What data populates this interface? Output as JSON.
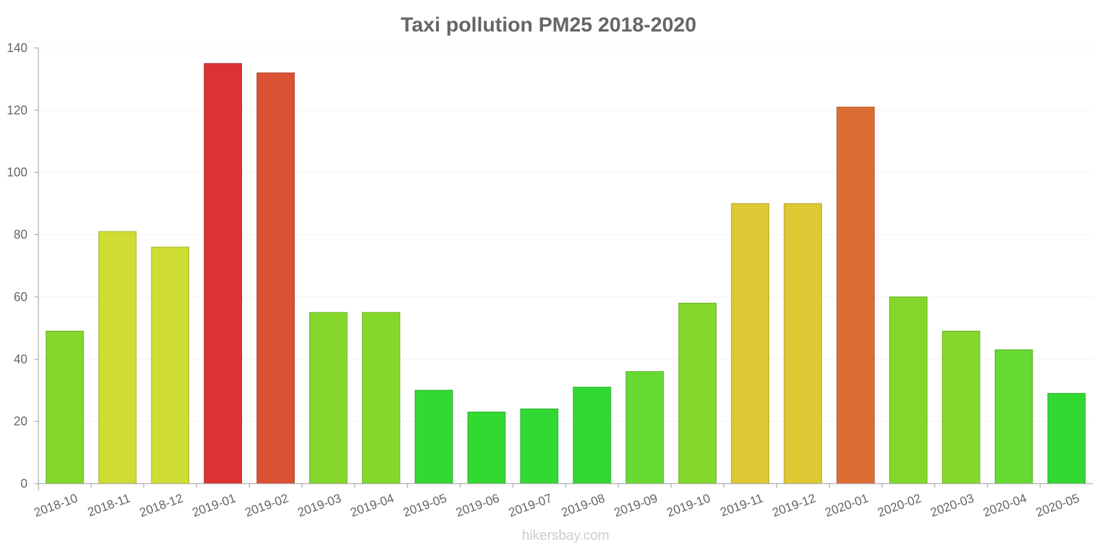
{
  "chart_data": {
    "type": "bar",
    "title": "Taxi pollution PM25 2018-2020",
    "xlabel": "",
    "ylabel": "",
    "ylim": [
      0,
      140
    ],
    "yticks": [
      0,
      20,
      40,
      60,
      80,
      100,
      120,
      140
    ],
    "grid": true,
    "categories": [
      "2018-10",
      "2018-11",
      "2018-12",
      "2019-01",
      "2019-02",
      "2019-03",
      "2019-04",
      "2019-05",
      "2019-06",
      "2019-07",
      "2019-08",
      "2019-09",
      "2019-10",
      "2019-11",
      "2019-12",
      "2020-01",
      "2020-02",
      "2020-03",
      "2020-04",
      "2020-05"
    ],
    "values": [
      49,
      81,
      76,
      135,
      132,
      55,
      55,
      30,
      23,
      24,
      31,
      36,
      58,
      90,
      90,
      121,
      60,
      49,
      43,
      29
    ],
    "colors": [
      "#84d82c",
      "#cfdc33",
      "#cfdc33",
      "#db3333",
      "#db5133",
      "#84d82c",
      "#84d82c",
      "#32d932",
      "#32d932",
      "#32d932",
      "#32d932",
      "#66d932",
      "#84d82c",
      "#dcc933",
      "#dcc933",
      "#dc6e33",
      "#84d82c",
      "#84d82c",
      "#66d932",
      "#32d932"
    ]
  },
  "watermark": "hikersbay.com"
}
